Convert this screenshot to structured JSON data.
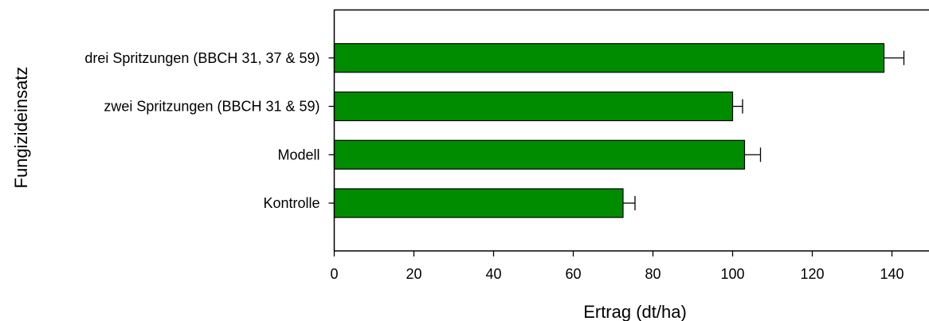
{
  "chart_data": {
    "type": "bar",
    "orientation": "horizontal",
    "categories": [
      "Kontrolle",
      "Modell",
      "zwei Spritzungen (BBCH 31 & 59)",
      "drei Spritzungen (BBCH 31, 37 & 59)"
    ],
    "values": [
      72.5,
      103,
      100,
      138
    ],
    "errors": [
      3,
      4,
      2.5,
      5
    ],
    "title": "",
    "xlabel": "Ertrag (dt/ha)",
    "ylabel": "Fungizideinsatz",
    "xlim": [
      0,
      149
    ],
    "xticks": [
      0,
      20,
      40,
      60,
      80,
      100,
      120,
      140
    ],
    "grid": false,
    "legend": "none",
    "bar_color": "#008c00",
    "bar_edge_color": "#000000"
  }
}
